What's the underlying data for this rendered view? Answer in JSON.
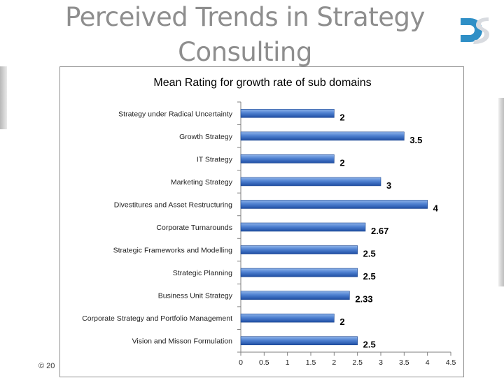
{
  "slide": {
    "title_line1": "Perceived Trends in Strategy",
    "title_line2": "Consulting",
    "copyright": "© 20"
  },
  "colors": {
    "bar_light": "#8fb4ea",
    "bar_mid": "#4f81d1",
    "bar_dark": "#1f4ea3",
    "title_gray": "#8e8e8e",
    "logo_blue": "#2f8fc6"
  },
  "chart_data": {
    "type": "bar",
    "orientation": "horizontal",
    "title": "Mean Rating for growth rate of sub domains",
    "categories": [
      "Strategy under Radical Uncertainty",
      "Growth Strategy",
      "IT Strategy",
      "Marketing Strategy",
      "Divestitures and Asset Restructuring",
      "Corporate Turnarounds",
      "Strategic Frameworks and Modelling",
      "Strategic Planning",
      "Business Unit Strategy",
      "Corporate Strategy and Portfolio Management",
      "Vision and Misson Formulation"
    ],
    "values": [
      2,
      3.5,
      2,
      3,
      4,
      2.67,
      2.5,
      2.5,
      2.33,
      2,
      2.5
    ],
    "value_labels": [
      "2",
      "3.5",
      "2",
      "3",
      "4",
      "2.67",
      "2.5",
      "2.5",
      "2.33",
      "2",
      "2.5"
    ],
    "xlim": [
      0,
      4.5
    ],
    "x_ticks": [
      "0",
      "0.5",
      "1",
      "1.5",
      "2",
      "2.5",
      "3",
      "3.5",
      "4",
      "4.5"
    ],
    "grid": false,
    "legend": "none"
  }
}
